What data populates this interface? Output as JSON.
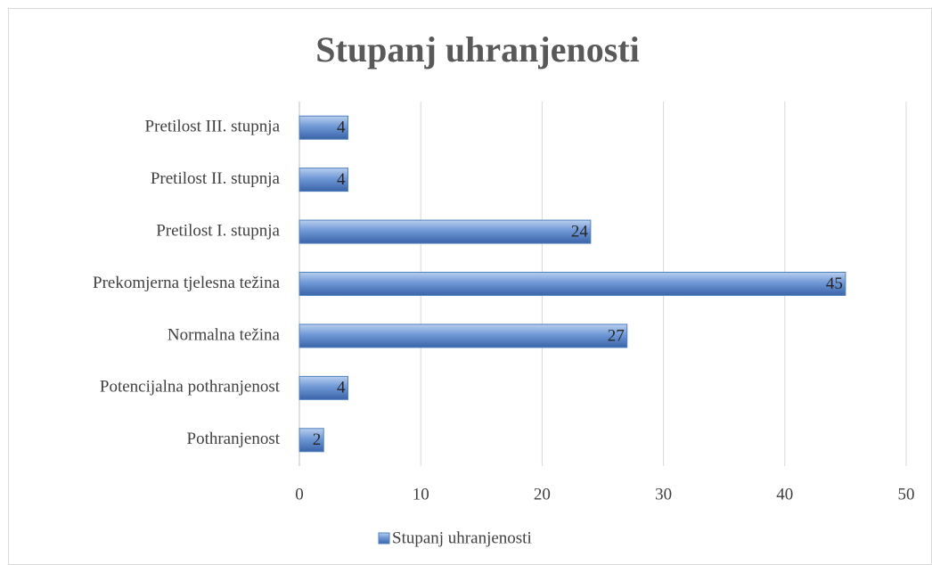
{
  "chart_data": {
    "type": "bar",
    "orientation": "horizontal",
    "title": "Stupanj uhranjenosti",
    "categories": [
      "Pretilost III. stupnja",
      "Pretilost II. stupnja",
      "Pretilost I. stupnja",
      "Prekomjerna tjelesna težina",
      "Normalna težina",
      "Potencijalna pothranjenost",
      "Pothranjenost"
    ],
    "series": [
      {
        "name": "Stupanj uhranjenosti",
        "color": "#4f81bd",
        "values": [
          4,
          4,
          24,
          45,
          27,
          4,
          2
        ]
      }
    ],
    "xlim": [
      0,
      50
    ],
    "xticks": [
      0,
      10,
      20,
      30,
      40,
      50
    ],
    "grid": true,
    "legend": "bottom"
  }
}
